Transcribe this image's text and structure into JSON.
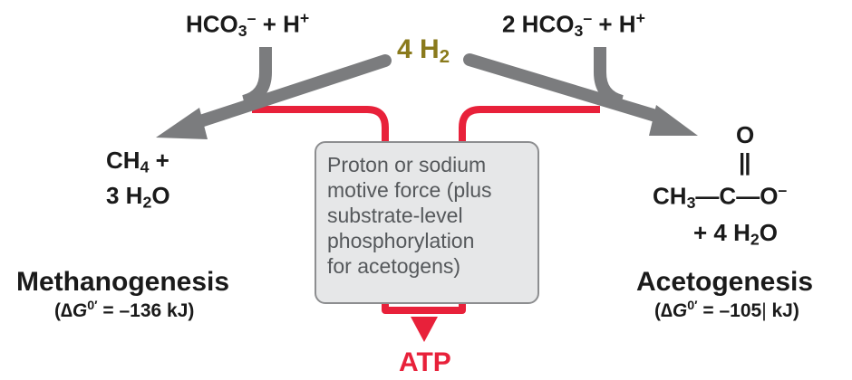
{
  "nodes": {
    "left_reactant": {
      "base": "HCO",
      "sub": "3",
      "sup": "–",
      "rest": " + H",
      "sup2": "+"
    },
    "right_reactant": {
      "coef": "2 HCO",
      "sub": "3",
      "sup": "–",
      "rest": " + H",
      "sup2": "+"
    },
    "hydrogen": {
      "text": "4 H",
      "sub": "2"
    },
    "methane_product": {
      "line1_text": "CH",
      "line1_sub": "4",
      "line1_rest": " +",
      "line2_text": "3 H",
      "line2_sub": "2",
      "line2_rest": "O"
    },
    "acetate_product": {
      "o_top": "O",
      "double_bond": "||",
      "ch": "CH",
      "ch_sub": "3",
      "bond1": "—",
      "c": "C",
      "bond2": "—",
      "o_minus": "O",
      "o_minus_sup": "–",
      "water_text": "+ 4 H",
      "water_sub": "2",
      "water_rest": "O"
    },
    "energy_box": {
      "lines": [
        "Proton or sodium",
        "motive force (plus",
        "substrate-level",
        "phosphorylation",
        "for acetogens)"
      ]
    },
    "atp": "ATP"
  },
  "processes": {
    "methanogenesis": {
      "title": "Methanogenesis",
      "dg_open": "(∆",
      "dg_G": "G",
      "dg_sup": "0′",
      "dg_value": " = –136 kJ)"
    },
    "acetogenesis": {
      "title": "Acetogenesis",
      "dg_open": "(∆",
      "dg_G": "G",
      "dg_sup": "0′",
      "dg_value": " = –105",
      "dg_cursor": "|",
      "dg_unit": " kJ)"
    }
  },
  "colors": {
    "gray_arrow": "#7b7c7e",
    "red_path": "#e8213a",
    "hydrogen_text": "#8a7a1c",
    "box_fill": "#e6e7e8",
    "box_border": "#8d8e90",
    "box_text": "#55585b"
  }
}
